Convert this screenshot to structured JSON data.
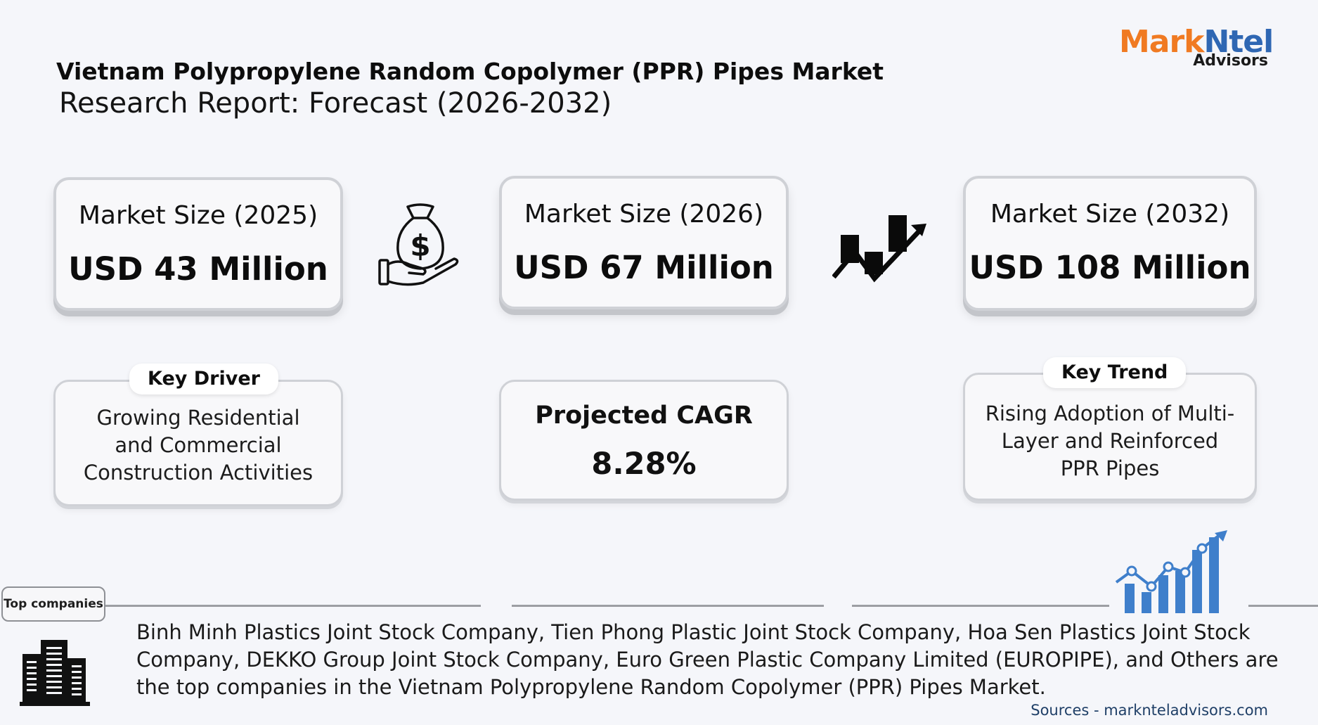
{
  "header": {
    "title_line1": "Vietnam Polypropylene Random Copolymer (PPR) Pipes Market",
    "title_line2": "Research Report: Forecast (2026-2032)"
  },
  "logo": {
    "mark": "Mark",
    "ntel": "Ntel",
    "sub": "Advisors"
  },
  "market_sizes": [
    {
      "label": "Market Size (2025)",
      "value": "USD 43 Million"
    },
    {
      "label": "Market Size (2026)",
      "value": "USD 67 Million"
    },
    {
      "label": "Market Size (2032)",
      "value": "USD 108 Million"
    }
  ],
  "key_driver": {
    "title": "Key Driver",
    "lines": [
      "Growing Residential",
      "and Commercial",
      "Construction Activities"
    ]
  },
  "cagr": {
    "label": "Projected CAGR",
    "value": "8.28%"
  },
  "key_trend": {
    "title": "Key Trend",
    "lines": [
      "Rising Adoption of Multi-",
      "Layer and Reinforced",
      "PPR Pipes"
    ]
  },
  "top_companies": {
    "badge": "Top companies",
    "text": "Binh Minh Plastics Joint Stock Company, Tien Phong Plastic Joint Stock Company, Hoa Sen Plastics Joint Stock Company, DEKKO Group Joint Stock Company, Euro Green Plastic Company Limited (EUROPIPE), and Others are the top companies in the Vietnam Polypropylene Random Copolymer (PPR) Pipes Market."
  },
  "sources": "Sources - marknteladvisors.com",
  "icons": {
    "money": "money-bag-hand-icon",
    "trend": "rising-bar-arrow-icon",
    "growth_chart": "growth-chart-icon",
    "buildings": "office-buildings-icon"
  },
  "colors": {
    "logo_orange": "#f07a22",
    "logo_blue": "#2f67b3",
    "accent_blue": "#3f7fcb"
  }
}
